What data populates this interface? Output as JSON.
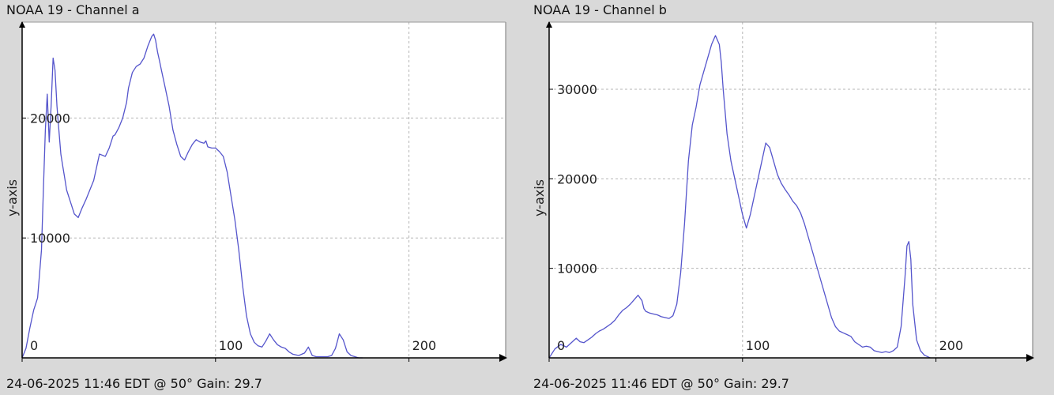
{
  "chart_data": [
    {
      "type": "line",
      "title": "NOAA 19 - Channel a",
      "footer": "24-06-2025 11:46 EDT @ 50° Gain: 29.7",
      "xlabel": "",
      "ylabel": "y-axis",
      "xlim": [
        0,
        250
      ],
      "ylim": [
        0,
        28000
      ],
      "x_ticks": [
        0,
        100,
        200
      ],
      "y_ticks": [
        10000,
        20000
      ],
      "grid": true,
      "line_color": "#5555cc",
      "series": [
        {
          "x": [
            0,
            2,
            4,
            6,
            8,
            10,
            11,
            12,
            13,
            14,
            15,
            16,
            17,
            18,
            19,
            20,
            21,
            22,
            23,
            25,
            27,
            29,
            31,
            33,
            35,
            37,
            40,
            43,
            45,
            47,
            48,
            50,
            52,
            54,
            55,
            57,
            59,
            61,
            63,
            65,
            67,
            68,
            69,
            70,
            71,
            72,
            74,
            76,
            78,
            80,
            82,
            84,
            86,
            88,
            90,
            92,
            94,
            95,
            96,
            98,
            100,
            102,
            104,
            106,
            108,
            110,
            112,
            114,
            116,
            118,
            120,
            122,
            124,
            126,
            128,
            130,
            132,
            134,
            136,
            138,
            140,
            143,
            146,
            148,
            150,
            152,
            154,
            156,
            158,
            160,
            162,
            164,
            166,
            168,
            170,
            172,
            174,
            176
          ],
          "y": [
            0,
            800,
            2500,
            4000,
            5000,
            9000,
            14000,
            19000,
            22000,
            18000,
            21000,
            25000,
            24000,
            21000,
            19000,
            17000,
            16000,
            15000,
            14000,
            13000,
            12000,
            11700,
            12500,
            13200,
            14000,
            14800,
            17000,
            16800,
            17500,
            18500,
            18600,
            19200,
            20000,
            21300,
            22500,
            23800,
            24300,
            24500,
            25000,
            26000,
            26800,
            27000,
            26500,
            25500,
            24800,
            24000,
            22500,
            21000,
            19000,
            17800,
            16800,
            16500,
            17200,
            17800,
            18200,
            18000,
            17900,
            18100,
            17600,
            17500,
            17500,
            17200,
            16800,
            15500,
            13500,
            11500,
            9000,
            6000,
            3500,
            2000,
            1300,
            1000,
            900,
            1400,
            2000,
            1500,
            1100,
            900,
            800,
            500,
            300,
            200,
            400,
            900,
            200,
            100,
            100,
            100,
            100,
            200,
            800,
            2000,
            1500,
            500,
            200,
            100,
            0,
            0
          ]
        }
      ]
    },
    {
      "type": "line",
      "title": "NOAA 19 - Channel b",
      "footer": "24-06-2025 11:46 EDT @ 50° Gain: 29.7",
      "xlabel": "",
      "ylabel": "y-axis",
      "xlim": [
        0,
        250
      ],
      "ylim": [
        0,
        37500
      ],
      "x_ticks": [
        0,
        100,
        200
      ],
      "y_ticks": [
        10000,
        20000,
        30000
      ],
      "grid": true,
      "line_color": "#5555cc",
      "series": [
        {
          "x": [
            0,
            3,
            6,
            9,
            12,
            14,
            16,
            18,
            20,
            22,
            24,
            26,
            28,
            30,
            32,
            34,
            36,
            38,
            40,
            42,
            44,
            46,
            48,
            49,
            50,
            52,
            54,
            56,
            58,
            60,
            62,
            64,
            66,
            68,
            70,
            72,
            74,
            76,
            78,
            80,
            82,
            84,
            86,
            88,
            89,
            90,
            92,
            94,
            96,
            98,
            100,
            102,
            104,
            106,
            108,
            110,
            112,
            114,
            116,
            118,
            120,
            122,
            124,
            126,
            128,
            130,
            132,
            134,
            136,
            138,
            140,
            142,
            144,
            146,
            148,
            150,
            152,
            154,
            156,
            158,
            160,
            162,
            164,
            166,
            168,
            170,
            172,
            174,
            176,
            178,
            180,
            182,
            184,
            185,
            186,
            187,
            188,
            190,
            192,
            194,
            195,
            197
          ],
          "y": [
            0,
            1000,
            1500,
            1200,
            1800,
            2200,
            1800,
            1700,
            2000,
            2300,
            2700,
            3000,
            3200,
            3500,
            3800,
            4200,
            4800,
            5300,
            5600,
            6000,
            6500,
            7000,
            6400,
            5500,
            5200,
            5000,
            4900,
            4800,
            4600,
            4500,
            4400,
            4700,
            6000,
            9500,
            15000,
            22000,
            26000,
            28000,
            30500,
            32000,
            33500,
            35000,
            36000,
            35000,
            33000,
            30000,
            25000,
            22000,
            20000,
            18000,
            16000,
            14500,
            16000,
            18000,
            20000,
            22000,
            24000,
            23500,
            22000,
            20500,
            19500,
            18800,
            18200,
            17500,
            17000,
            16200,
            15000,
            13500,
            12000,
            10500,
            9000,
            7500,
            6000,
            4500,
            3500,
            3000,
            2800,
            2600,
            2400,
            1800,
            1500,
            1200,
            1300,
            1200,
            800,
            700,
            600,
            700,
            600,
            800,
            1200,
            3500,
            9000,
            12500,
            13000,
            11000,
            6000,
            2000,
            800,
            300,
            200,
            0
          ]
        }
      ]
    }
  ]
}
